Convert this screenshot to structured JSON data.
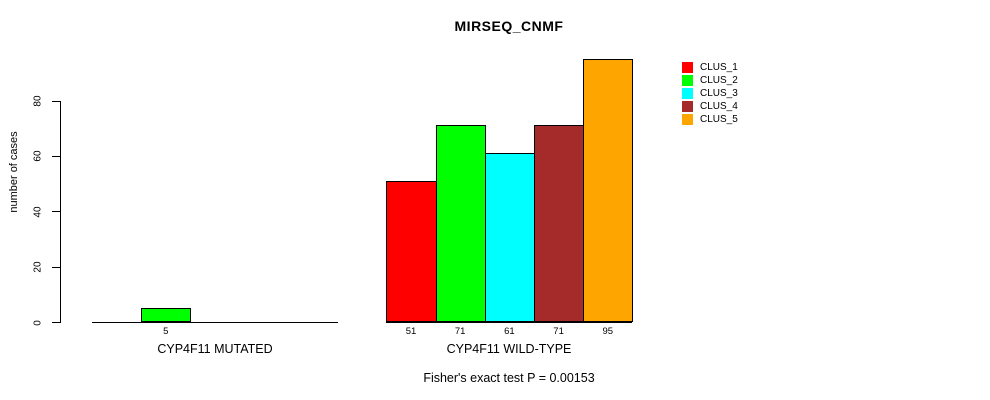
{
  "page": {
    "background_color": "#FFFFFF",
    "text_color": "#000000"
  },
  "chart_data": {
    "type": "bar",
    "title": "MIRSEQ_CNMF",
    "ylabel": "number of cases",
    "xlabel": "",
    "ylim": [
      0,
      95
    ],
    "yticks": [
      0,
      20,
      40,
      60,
      80
    ],
    "grid": false,
    "legend_position": "right",
    "series": [
      {
        "name": "CLUS_1",
        "color": "#FF0000"
      },
      {
        "name": "CLUS_2",
        "color": "#00FF00"
      },
      {
        "name": "CLUS_3",
        "color": "#00FFFF"
      },
      {
        "name": "CLUS_4",
        "color": "#A52A2A"
      },
      {
        "name": "CLUS_5",
        "color": "#FFA500"
      }
    ],
    "groups": [
      {
        "label": "CYP4F11 MUTATED",
        "values": [
          0,
          5,
          0,
          0,
          0
        ],
        "value_labels": [
          "",
          "5",
          "",
          "",
          ""
        ]
      },
      {
        "label": "CYP4F11 WILD-TYPE",
        "values": [
          51,
          71,
          61,
          71,
          95
        ],
        "value_labels": [
          "51",
          "71",
          "61",
          "71",
          "95"
        ]
      }
    ],
    "annotation": "Fisher's exact test P = 0.00153"
  }
}
